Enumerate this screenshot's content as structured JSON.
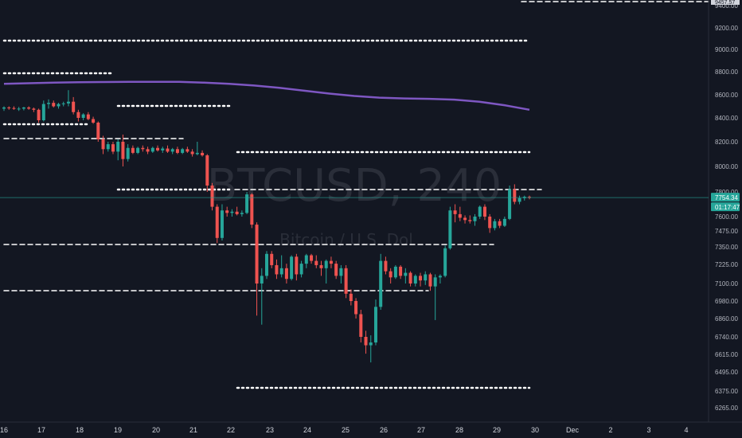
{
  "chart_data": {
    "type": "candlestick",
    "symbol": "BTCUSD",
    "interval": "240",
    "watermark_symbol": "BTCUSD, 240",
    "watermark_desc": "Bitcoin / U.S. Dol",
    "current_price": 7754.34,
    "countdown": "01:17:47",
    "top_partial_label": "9457.57",
    "y_ticks": [
      6265.0,
      6375.0,
      6495.0,
      6615.0,
      6740.0,
      6860.0,
      6980.0,
      7100.0,
      7225.0,
      7350.0,
      7475.0,
      7600.0,
      7800.0,
      8000.0,
      8200.0,
      8400.0,
      8600.0,
      8800.0,
      9000.0,
      9200.0,
      9400.0
    ],
    "y_tick_labels": [
      "6265.00",
      "6375.00",
      "6495.00",
      "6615.00",
      "6740.00",
      "6860.00",
      "6980.00",
      "7100.00",
      "7225.00",
      "7350.00",
      "7475.00",
      "7600.00",
      "7800.00",
      "8000.00",
      "8200.00",
      "8400.00",
      "8600.00",
      "8800.00",
      "9000.00",
      "9200.00",
      "9400.00"
    ],
    "x_labels": [
      "16",
      "17",
      "18",
      "19",
      "20",
      "21",
      "22",
      "23",
      "24",
      "25",
      "26",
      "27",
      "28",
      "29",
      "30",
      "Dec",
      "2",
      "3",
      "4"
    ],
    "up_color": "#26a69a",
    "down_color": "#ef5350",
    "ma_color": "#7e57c2",
    "ma": [
      8695,
      8700,
      8705,
      8708,
      8710,
      8712,
      8712,
      8712,
      8705,
      8695,
      8680,
      8660,
      8635,
      8610,
      8590,
      8575,
      8568,
      8565,
      8558,
      8540,
      8510,
      8470
    ],
    "candles": [
      [
        8480,
        8500,
        8460,
        8490
      ],
      [
        8490,
        8500,
        8470,
        8485
      ],
      [
        8485,
        8500,
        8470,
        8480
      ],
      [
        8480,
        8495,
        8460,
        8480
      ],
      [
        8480,
        8495,
        8465,
        8490
      ],
      [
        8490,
        8500,
        8470,
        8480
      ],
      [
        8480,
        8490,
        8450,
        8470
      ],
      [
        8470,
        8480,
        8360,
        8380
      ],
      [
        8380,
        8550,
        8370,
        8520
      ],
      [
        8520,
        8560,
        8480,
        8530
      ],
      [
        8530,
        8550,
        8490,
        8500
      ],
      [
        8500,
        8530,
        8480,
        8520
      ],
      [
        8520,
        8540,
        8500,
        8525
      ],
      [
        8525,
        8640,
        8500,
        8540
      ],
      [
        8540,
        8580,
        8430,
        8450
      ],
      [
        8450,
        8470,
        8370,
        8400
      ],
      [
        8400,
        8440,
        8380,
        8430
      ],
      [
        8430,
        8450,
        8380,
        8390
      ],
      [
        8390,
        8410,
        8350,
        8360
      ],
      [
        8360,
        8370,
        8200,
        8220
      ],
      [
        8220,
        8250,
        8100,
        8140
      ],
      [
        8140,
        8200,
        8120,
        8180
      ],
      [
        8180,
        8200,
        8100,
        8120
      ],
      [
        8120,
        8220,
        8050,
        8200
      ],
      [
        8200,
        8260,
        8000,
        8060
      ],
      [
        8060,
        8180,
        8040,
        8150
      ],
      [
        8150,
        8170,
        8100,
        8110
      ],
      [
        8110,
        8160,
        8100,
        8150
      ],
      [
        8150,
        8170,
        8120,
        8140
      ],
      [
        8140,
        8160,
        8100,
        8120
      ],
      [
        8120,
        8160,
        8110,
        8150
      ],
      [
        8150,
        8170,
        8120,
        8130
      ],
      [
        8130,
        8160,
        8110,
        8145
      ],
      [
        8145,
        8170,
        8110,
        8120
      ],
      [
        8120,
        8150,
        8100,
        8140
      ],
      [
        8140,
        8160,
        8100,
        8110
      ],
      [
        8110,
        8150,
        8100,
        8140
      ],
      [
        8140,
        8160,
        8110,
        8120
      ],
      [
        8120,
        8140,
        8080,
        8100
      ],
      [
        8100,
        8200,
        8090,
        8110
      ],
      [
        8110,
        8130,
        8080,
        8090
      ],
      [
        8090,
        8100,
        7800,
        7850
      ],
      [
        7850,
        7870,
        7650,
        7680
      ],
      [
        7680,
        7700,
        7380,
        7420
      ],
      [
        7420,
        7700,
        7400,
        7650
      ],
      [
        7650,
        7680,
        7600,
        7630
      ],
      [
        7630,
        7660,
        7600,
        7640
      ],
      [
        7640,
        7680,
        7610,
        7620
      ],
      [
        7620,
        7650,
        7600,
        7630
      ],
      [
        7630,
        7800,
        7620,
        7780
      ],
      [
        7780,
        7790,
        7500,
        7530
      ],
      [
        7530,
        7550,
        6880,
        7100
      ],
      [
        7100,
        7200,
        6820,
        7150
      ],
      [
        7150,
        7320,
        7130,
        7300
      ],
      [
        7300,
        7320,
        7200,
        7220
      ],
      [
        7220,
        7260,
        7130,
        7160
      ],
      [
        7160,
        7290,
        7140,
        7200
      ],
      [
        7200,
        7230,
        7100,
        7130
      ],
      [
        7130,
        7290,
        7120,
        7280
      ],
      [
        7280,
        7300,
        7120,
        7160
      ],
      [
        7160,
        7250,
        7140,
        7230
      ],
      [
        7230,
        7300,
        7200,
        7290
      ],
      [
        7290,
        7300,
        7230,
        7250
      ],
      [
        7250,
        7290,
        7200,
        7220
      ],
      [
        7220,
        7250,
        7150,
        7200
      ],
      [
        7200,
        7260,
        7100,
        7250
      ],
      [
        7250,
        7280,
        7200,
        7230
      ],
      [
        7230,
        7250,
        7130,
        7150
      ],
      [
        7150,
        7220,
        7100,
        7200
      ],
      [
        7200,
        7220,
        7000,
        7030
      ],
      [
        7030,
        7060,
        6950,
        6980
      ],
      [
        6980,
        7000,
        6860,
        6890
      ],
      [
        6890,
        6920,
        6700,
        6740
      ],
      [
        6740,
        6780,
        6620,
        6680
      ],
      [
        6680,
        6750,
        6560,
        6700
      ],
      [
        6700,
        6990,
        6680,
        6940
      ],
      [
        6940,
        7300,
        6920,
        7250
      ],
      [
        7250,
        7280,
        7160,
        7180
      ],
      [
        7180,
        7200,
        7100,
        7140
      ],
      [
        7140,
        7220,
        7130,
        7210
      ],
      [
        7210,
        7220,
        7130,
        7150
      ],
      [
        7150,
        7200,
        7100,
        7170
      ],
      [
        7170,
        7180,
        7080,
        7100
      ],
      [
        7100,
        7160,
        7080,
        7150
      ],
      [
        7150,
        7170,
        7080,
        7120
      ],
      [
        7120,
        7180,
        7090,
        7160
      ],
      [
        7160,
        7170,
        7050,
        7080
      ],
      [
        7080,
        7160,
        6850,
        7140
      ],
      [
        7140,
        7160,
        7100,
        7150
      ],
      [
        7150,
        7360,
        7140,
        7340
      ],
      [
        7340,
        7680,
        7330,
        7650
      ],
      [
        7650,
        7700,
        7550,
        7620
      ],
      [
        7620,
        7680,
        7560,
        7590
      ],
      [
        7590,
        7610,
        7540,
        7570
      ],
      [
        7570,
        7610,
        7540,
        7560
      ],
      [
        7560,
        7620,
        7520,
        7600
      ],
      [
        7600,
        7690,
        7580,
        7680
      ],
      [
        7680,
        7700,
        7570,
        7600
      ],
      [
        7600,
        7620,
        7460,
        7500
      ],
      [
        7500,
        7580,
        7480,
        7560
      ],
      [
        7560,
        7580,
        7500,
        7520
      ],
      [
        7520,
        7600,
        7510,
        7580
      ],
      [
        7580,
        7850,
        7570,
        7820
      ],
      [
        7820,
        7860,
        7700,
        7720
      ],
      [
        7720,
        7770,
        7700,
        7750
      ],
      [
        7750,
        7770,
        7730,
        7760
      ],
      [
        7760,
        7770,
        7740,
        7754.34
      ]
    ]
  }
}
